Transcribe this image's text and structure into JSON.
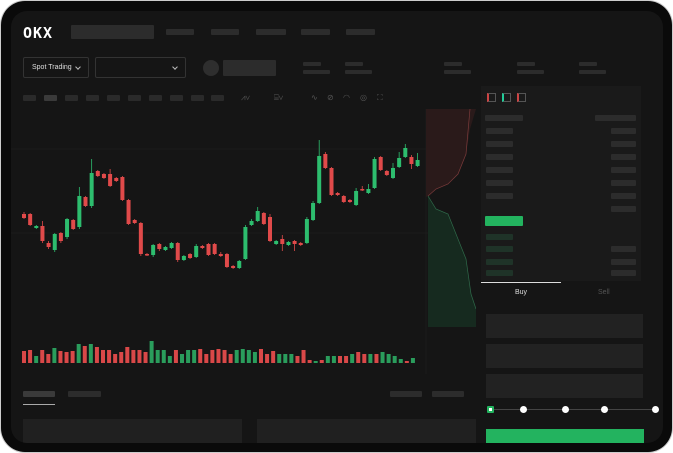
{
  "header": {
    "logo": "OKX"
  },
  "market_bar": {
    "trading_mode": "Spot Trading",
    "pair_select_value": ""
  },
  "order_panel": {
    "tabs": [
      {
        "label": "Buy",
        "active": true
      },
      {
        "label": "Sell",
        "active": false
      }
    ],
    "slider_percent": 0
  },
  "colors": {
    "up": "#2dbd6e",
    "down": "#e04a4a",
    "background": "#151515",
    "buy_button": "#23b35f"
  },
  "chart_data": {
    "type": "candlestick",
    "candles": [
      [
        97,
        93,
        99,
        92
      ],
      [
        97,
        86,
        98,
        85
      ],
      [
        83,
        85,
        86,
        82
      ],
      [
        85,
        70,
        90,
        68
      ],
      [
        68,
        64,
        70,
        62
      ],
      [
        61,
        77,
        78,
        59
      ],
      [
        78,
        70,
        79,
        68
      ],
      [
        74,
        92,
        93,
        72
      ],
      [
        91,
        82,
        92,
        81
      ],
      [
        84,
        115,
        124,
        82
      ],
      [
        114,
        105,
        115,
        104
      ],
      [
        105,
        138,
        152,
        103
      ],
      [
        140,
        135,
        141,
        134
      ],
      [
        137,
        133,
        138,
        132
      ],
      [
        137,
        125,
        142,
        124
      ],
      [
        133,
        130,
        134,
        129
      ],
      [
        134,
        111,
        135,
        110
      ],
      [
        111,
        87,
        112,
        86
      ],
      [
        91,
        88,
        92,
        87
      ],
      [
        88,
        57,
        89,
        55
      ],
      [
        57,
        56,
        58,
        55
      ],
      [
        56,
        66,
        67,
        54
      ],
      [
        67,
        62,
        68,
        60
      ],
      [
        61,
        64,
        65,
        60
      ],
      [
        63,
        68,
        69,
        62
      ],
      [
        68,
        51,
        69,
        49
      ],
      [
        51,
        55,
        56,
        50
      ],
      [
        57,
        53,
        58,
        52
      ],
      [
        54,
        65,
        67,
        53
      ],
      [
        65,
        63,
        66,
        62
      ],
      [
        67,
        56,
        68,
        55
      ],
      [
        67,
        57,
        68,
        56
      ],
      [
        57,
        55,
        59,
        54
      ],
      [
        57,
        44,
        58,
        43
      ],
      [
        45,
        43,
        46,
        42
      ],
      [
        43,
        50,
        51,
        42
      ],
      [
        52,
        84,
        86,
        51
      ],
      [
        86,
        90,
        92,
        85
      ],
      [
        90,
        100,
        104,
        89
      ],
      [
        98,
        87,
        99,
        86
      ],
      [
        94,
        70,
        97,
        69
      ],
      [
        67,
        70,
        71,
        66
      ],
      [
        72,
        67,
        76,
        60
      ],
      [
        66,
        69,
        70,
        65
      ],
      [
        70,
        67,
        71,
        60
      ],
      [
        68,
        66,
        69,
        65
      ],
      [
        68,
        92,
        94,
        67
      ],
      [
        91,
        108,
        110,
        90
      ],
      [
        108,
        155,
        171,
        107
      ],
      [
        157,
        143,
        159,
        142
      ],
      [
        143,
        116,
        144,
        115
      ],
      [
        118,
        116,
        119,
        115
      ],
      [
        115,
        109,
        116,
        108
      ],
      [
        111,
        109,
        112,
        108
      ],
      [
        106,
        120,
        123,
        105
      ],
      [
        122,
        121,
        125,
        120
      ],
      [
        118,
        122,
        127,
        117
      ],
      [
        123,
        152,
        154,
        122
      ],
      [
        154,
        141,
        155,
        140
      ],
      [
        140,
        136,
        141,
        135
      ],
      [
        133,
        143,
        148,
        132
      ],
      [
        144,
        153,
        159,
        143
      ],
      [
        154,
        163,
        167,
        153
      ],
      [
        154,
        147,
        156,
        142
      ],
      [
        145,
        151,
        158,
        144
      ]
    ],
    "volume": [
      [
        12,
        0
      ],
      [
        13,
        0
      ],
      [
        7,
        1
      ],
      [
        13,
        0
      ],
      [
        9,
        0
      ],
      [
        15,
        1
      ],
      [
        12,
        0
      ],
      [
        11,
        0
      ],
      [
        12,
        0
      ],
      [
        19,
        1
      ],
      [
        17,
        0
      ],
      [
        19,
        1
      ],
      [
        16,
        0
      ],
      [
        13,
        0
      ],
      [
        13,
        0
      ],
      [
        9,
        0
      ],
      [
        11,
        0
      ],
      [
        16,
        0
      ],
      [
        13,
        0
      ],
      [
        13,
        0
      ],
      [
        11,
        0
      ],
      [
        22,
        1
      ],
      [
        13,
        1
      ],
      [
        13,
        1
      ],
      [
        7,
        1
      ],
      [
        13,
        0
      ],
      [
        9,
        1
      ],
      [
        13,
        1
      ],
      [
        13,
        1
      ],
      [
        14,
        0
      ],
      [
        9,
        0
      ],
      [
        13,
        0
      ],
      [
        14,
        0
      ],
      [
        13,
        0
      ],
      [
        9,
        0
      ],
      [
        13,
        1
      ],
      [
        14,
        1
      ],
      [
        13,
        1
      ],
      [
        11,
        1
      ],
      [
        14,
        0
      ],
      [
        9,
        0
      ],
      [
        12,
        0
      ],
      [
        9,
        1
      ],
      [
        9,
        1
      ],
      [
        9,
        1
      ],
      [
        7,
        0
      ],
      [
        13,
        0
      ],
      [
        3,
        0
      ],
      [
        2,
        1
      ],
      [
        3,
        0
      ],
      [
        7,
        1
      ],
      [
        7,
        1
      ],
      [
        7,
        0
      ],
      [
        7,
        0
      ],
      [
        9,
        1
      ],
      [
        11,
        0
      ],
      [
        9,
        0
      ],
      [
        9,
        1
      ],
      [
        9,
        0
      ],
      [
        11,
        1
      ],
      [
        9,
        1
      ],
      [
        7,
        1
      ],
      [
        4,
        1
      ],
      [
        2,
        0
      ],
      [
        5,
        1
      ]
    ]
  }
}
